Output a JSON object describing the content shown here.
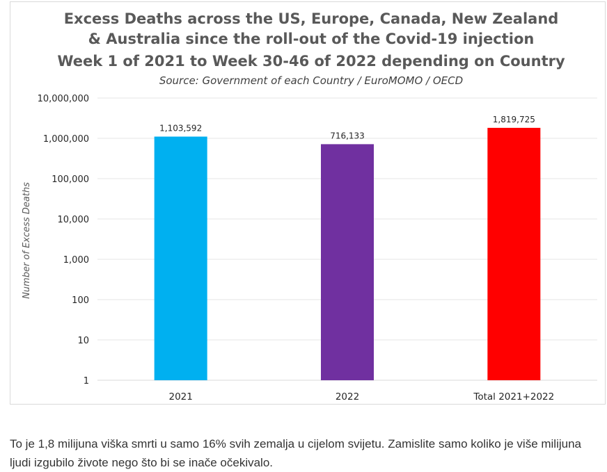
{
  "chart_data": {
    "type": "bar",
    "title_lines": [
      "Excess Deaths across the US, Europe, Canada, New Zealand",
      "& Australia since the roll-out of the Covid-19 injection",
      "Week 1 of 2021 to Week 30-46 of 2022 depending on Country"
    ],
    "subtitle": "Source: Government of each Country / EuroMOMO / OECD",
    "ylabel": "Number of Excess Deaths",
    "xlabel": "",
    "y_scale": "log10",
    "ylim": [
      1,
      10000000
    ],
    "y_ticks": [
      {
        "value": 10000000,
        "label": "10,000,000"
      },
      {
        "value": 1000000,
        "label": "1,000,000"
      },
      {
        "value": 100000,
        "label": "100,000"
      },
      {
        "value": 10000,
        "label": "10,000"
      },
      {
        "value": 1000,
        "label": "1,000"
      },
      {
        "value": 100,
        "label": "100"
      },
      {
        "value": 10,
        "label": "10"
      },
      {
        "value": 1,
        "label": "1"
      }
    ],
    "categories": [
      "2021",
      "2022",
      "Total 2021+2022"
    ],
    "values": [
      1103592,
      716133,
      1819725
    ],
    "value_labels": [
      "1,103,592",
      "716,133",
      "1,819,725"
    ],
    "colors": [
      "#00b0f0",
      "#7030a0",
      "#ff0000"
    ],
    "grid": true,
    "legend": "none"
  },
  "caption": "To je 1,8 milijuna viška smrti u samo 16% svih zemalja u cijelom svijetu. Zamislite samo koliko je više milijuna ljudi izgubilo živote nego što bi se inače očekivalo."
}
